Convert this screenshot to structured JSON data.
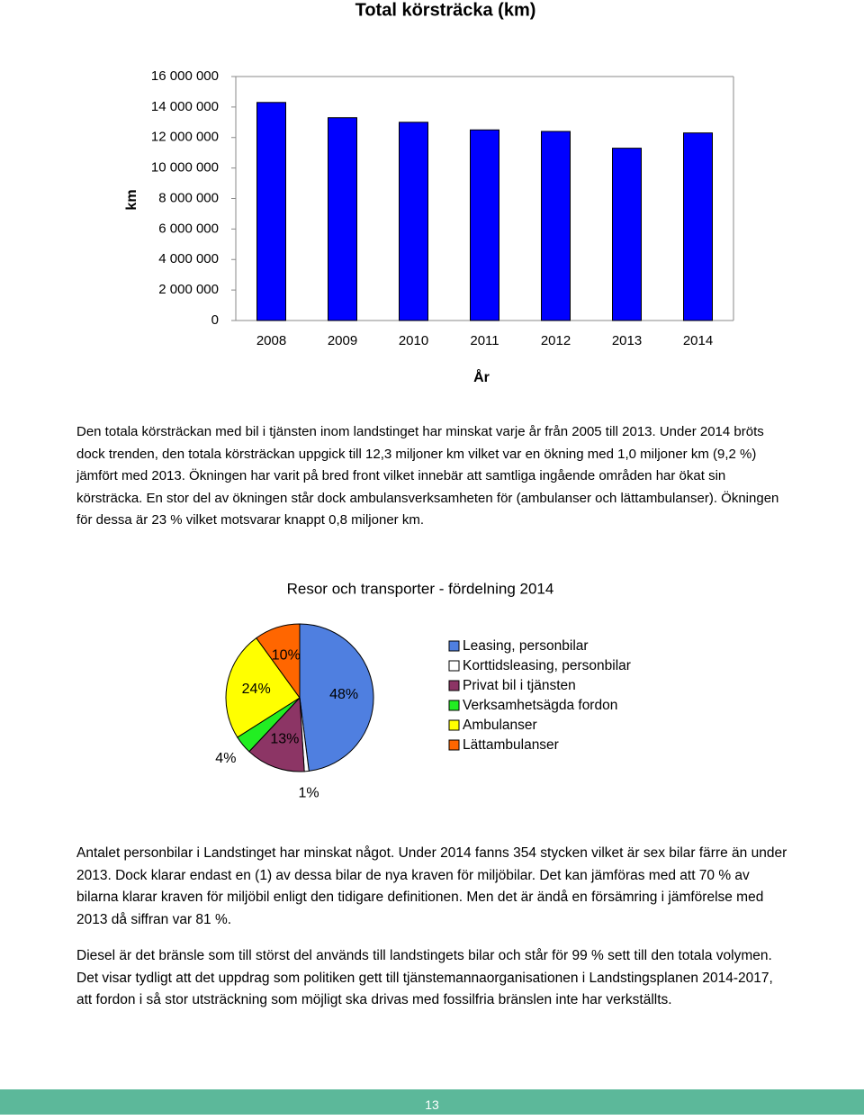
{
  "chart_data": [
    {
      "type": "bar",
      "title": "Total körsträcka (km)",
      "y_label": "km",
      "x_label": "År",
      "categories": [
        "2008",
        "2009",
        "2010",
        "2011",
        "2012",
        "2013",
        "2014"
      ],
      "values": [
        14300000,
        13300000,
        13000000,
        12500000,
        12400000,
        11300000,
        12300000
      ],
      "color": "#0000ff",
      "ylim": [
        0,
        16000000
      ],
      "yticks": [
        0,
        {
          "value": 2000000,
          "label": "2 000 000"
        },
        {
          "value": 4000000,
          "label": "4 000 000"
        },
        {
          "value": 6000000,
          "label": "6 000 000"
        },
        {
          "value": 8000000,
          "label": "8 000 000"
        },
        {
          "value": 10000000,
          "label": "10 000 000"
        },
        {
          "value": 12000000,
          "label": "12 000 000"
        },
        {
          "value": 14000000,
          "label": "14 000 000"
        },
        {
          "value": 16000000,
          "label": "16 000 000"
        }
      ],
      "grid": false
    },
    {
      "type": "pie",
      "title": "Resor och transporter - fördelning 2014",
      "categories": [
        "Leasing, personbilar",
        "Korttidsleasing, personbilar",
        "Privat bil i tjänsten",
        "Verksamhetsägda fordon",
        "Ambulanser",
        "Lättambulanser"
      ],
      "values": [
        48,
        1,
        13,
        4,
        24,
        10
      ],
      "value_labels": [
        "48%",
        "1%",
        "13%",
        "4%",
        "24%",
        "10%"
      ],
      "colors": [
        "#4f7fe0",
        "#ffffff",
        "#8c3565",
        "#22ee22",
        "#ffff00",
        "#ff6600"
      ],
      "legend": "right"
    }
  ],
  "paragraphs": [
    "Den totala körsträckan med bil i tjänsten inom landstinget har minskat varje år från 2005 till 2013. Under 2014 bröts dock trenden, den totala körsträckan uppgick till 12,3 miljoner km vilket var en ökning med 1,0 miljoner km (9,2 %) jämfört med 2013. Ökningen har varit på bred front vilket innebär att samtliga ingående områden har ökat sin körsträcka. En stor del av ökningen står dock ambulansverksamheten för (ambulanser och lättambulanser). Ökningen för dessa är 23 % vilket motsvarar knappt 0,8 miljoner km.",
    "Antalet personbilar i Landstinget har minskat något. Under 2014 fanns 354 stycken vilket är sex bilar färre än under 2013. Dock klarar endast en (1) av dessa bilar de nya kraven för miljöbilar. Det kan jämföras med att 70 % av bilarna klarar kraven för miljöbil enligt den tidigare definitionen. Men det är ändå en försämring i jämförelse med 2013 då siffran var 81 %.",
    "Diesel är det bränsle som till störst del används till landstingets bilar och står för 99 % sett till den totala volymen. Det visar tydligt att det uppdrag som politiken gett till tjänstemannaorganisationen i Landstingsplanen 2014-2017, att fordon i så stor utsträckning som möjligt ska drivas med fossilfria bränslen inte har verkställts."
  ],
  "page_number": "13"
}
